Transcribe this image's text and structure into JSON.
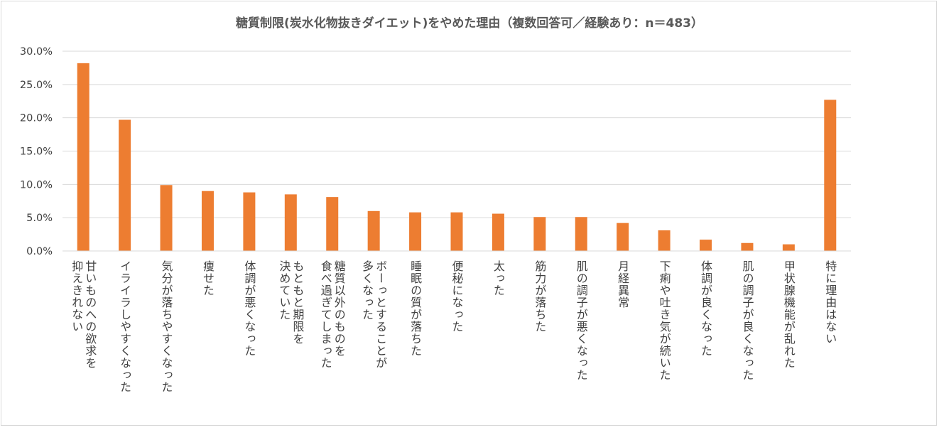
{
  "chart_data": {
    "type": "bar",
    "title": "糖質制限(炭水化物抜きダイエット)をやめた理由（複数回答可／経験あり：n＝483）",
    "xlabel": "",
    "ylabel": "",
    "ylim": [
      0,
      0.3
    ],
    "yticks": [
      "0.0%",
      "5.0%",
      "10.0%",
      "15.0%",
      "20.0%",
      "25.0%",
      "30.0%"
    ],
    "grid": true,
    "legend": "none",
    "bar_color": "#ED7D31",
    "grid_color": "#d9d9d9",
    "categories": [
      [
        "甘いものへの欲求を",
        "抑えきれない"
      ],
      [
        "イライラしやすくなった"
      ],
      [
        "気分が落ちやすくなった"
      ],
      [
        "痩せた"
      ],
      [
        "体調が悪くなった"
      ],
      [
        "もともと期限を",
        "決めていた"
      ],
      [
        "糖質以外のものを",
        "食べ過ぎてしまった"
      ],
      [
        "ボーっとすることが",
        "多くなった"
      ],
      [
        "睡眠の質が落ちた"
      ],
      [
        "便秘になった"
      ],
      [
        "太った"
      ],
      [
        "筋力が落ちた"
      ],
      [
        "肌の調子が悪くなった"
      ],
      [
        "月経異常"
      ],
      [
        "下痢や吐き気が続いた"
      ],
      [
        "体調が良くなった"
      ],
      [
        "肌の調子が良くなった"
      ],
      [
        "甲状腺機能が乱れた"
      ],
      [
        "特に理由はない"
      ]
    ],
    "values": [
      0.282,
      0.197,
      0.099,
      0.09,
      0.088,
      0.085,
      0.081,
      0.06,
      0.058,
      0.058,
      0.056,
      0.051,
      0.051,
      0.042,
      0.031,
      0.017,
      0.012,
      0.01,
      0.227
    ]
  }
}
